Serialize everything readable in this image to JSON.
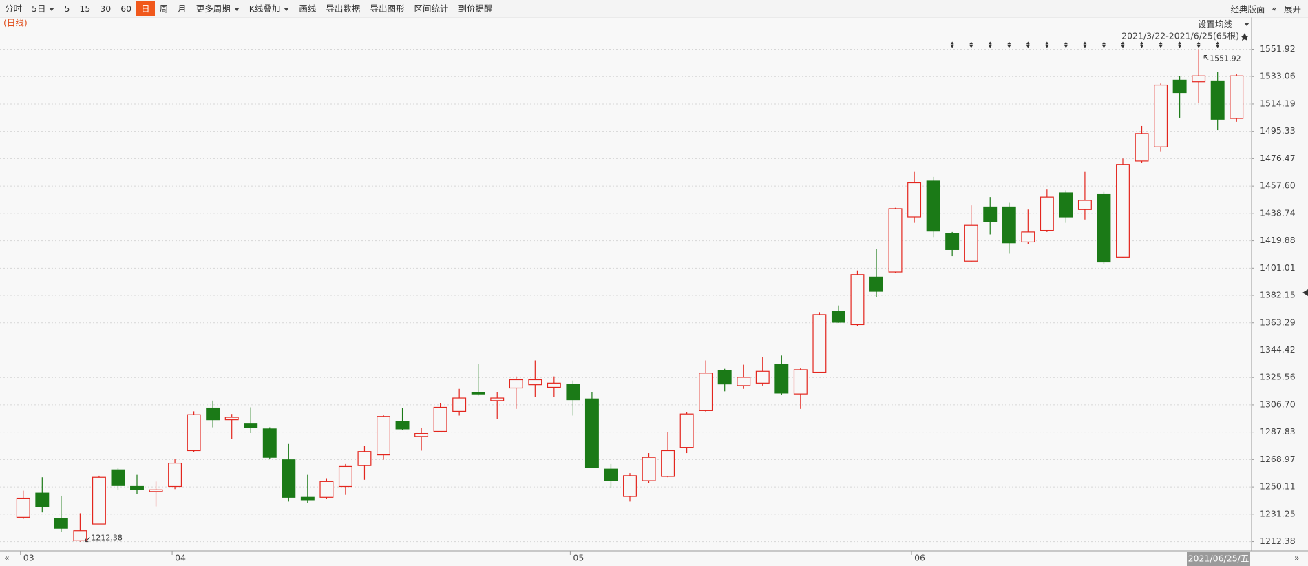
{
  "toolbar": {
    "items": [
      {
        "label": "分时"
      },
      {
        "label": "5日",
        "dropdown": true
      },
      {
        "label": "5"
      },
      {
        "label": "15"
      },
      {
        "label": "30"
      },
      {
        "label": "60"
      },
      {
        "label": "日",
        "active": true
      },
      {
        "label": "周"
      },
      {
        "label": "月"
      },
      {
        "label": "更多周期",
        "dropdown": true
      },
      {
        "label": "K线叠加",
        "dropdown": true
      },
      {
        "label": "画线"
      },
      {
        "label": "导出数据"
      },
      {
        "label": "导出图形"
      },
      {
        "label": "区间统计"
      },
      {
        "label": "到价提醒"
      }
    ],
    "right_items": [
      "经典版面",
      "«",
      "展开"
    ]
  },
  "chart_data": {
    "type": "candlestick",
    "period_label": "(日线)",
    "ma_setting": "设置均线",
    "range_label": "2021/3/22-2021/6/25(65根)",
    "cursor_date": "2021/06/25/五",
    "nav_prev": "«",
    "nav_next": "»",
    "up_color": "#e3261e",
    "down_color": "#1b7a17",
    "grid": true,
    "categories": [
      "03",
      null,
      null,
      null,
      null,
      null,
      null,
      null,
      "04",
      null,
      null,
      null,
      null,
      null,
      null,
      null,
      null,
      null,
      null,
      null,
      null,
      null,
      null,
      null,
      null,
      null,
      null,
      null,
      null,
      "05",
      null,
      null,
      null,
      null,
      null,
      null,
      null,
      null,
      null,
      null,
      null,
      null,
      null,
      null,
      null,
      null,
      null,
      "06",
      null,
      null,
      null,
      null,
      null,
      null,
      null,
      null,
      null,
      null,
      null,
      null,
      null,
      null,
      null,
      null,
      null
    ],
    "open": [
      1229.1,
      1245.8,
      1228.5,
      1212.96,
      1224.5,
      1261.9,
      1250.4,
      1246.9,
      1250.4,
      1275.1,
      1304.5,
      1296.4,
      1293.5,
      1290.1,
      1268.8,
      1242.9,
      1242.9,
      1250.4,
      1264.8,
      1272.2,
      1295.3,
      1284.9,
      1288.4,
      1302.2,
      1315.4,
      1309.6,
      1318.3,
      1320.6,
      1318.8,
      1321.1,
      1310.8,
      1262.4,
      1243.5,
      1254.4,
      1257.3,
      1277.4,
      1302.7,
      1330.4,
      1320.0,
      1321.7,
      1334.4,
      1314.2,
      1329.2,
      1371.2,
      1362.0,
      1394.8,
      1398.3,
      1436.3,
      1461.0,
      1424.7,
      1405.8,
      1443.2,
      1443.2,
      1419.0,
      1427.0,
      1452.9,
      1441.4,
      1451.7,
      1408.6,
      1474.8,
      1484.6,
      1530.6,
      1529.5,
      1530.1,
      1504.2
    ],
    "high": [
      1247.5,
      1256.7,
      1244.0,
      1231.9,
      1257.8,
      1263.0,
      1258.4,
      1253.8,
      1269.4,
      1302.2,
      1309.6,
      1300.4,
      1305.0,
      1291.2,
      1279.7,
      1258.4,
      1256.1,
      1265.9,
      1278.6,
      1299.9,
      1304.5,
      1290.6,
      1307.9,
      1317.7,
      1334.9,
      1315.4,
      1326.3,
      1337.3,
      1326.3,
      1323.4,
      1315.4,
      1265.9,
      1259.6,
      1273.4,
      1287.8,
      1301.6,
      1337.3,
      1331.5,
      1334.4,
      1339.6,
      1340.7,
      1332.1,
      1370.6,
      1375.2,
      1399.4,
      1414.4,
      1442.6,
      1467.3,
      1463.9,
      1425.9,
      1444.3,
      1450.0,
      1446.0,
      1441.4,
      1455.2,
      1454.6,
      1467.3,
      1453.5,
      1476.5,
      1499.0,
      1528.3,
      1533.5,
      1551.92,
      1536.4,
      1534.7
    ],
    "low": [
      1227.9,
      1232.5,
      1219.3,
      1212.38,
      1224.5,
      1248.1,
      1245.2,
      1236.6,
      1248.6,
      1274.0,
      1291.2,
      1283.2,
      1287.2,
      1269.4,
      1240.0,
      1238.9,
      1241.7,
      1244.6,
      1255.0,
      1268.8,
      1289.5,
      1275.1,
      1287.8,
      1299.3,
      1313.1,
      1297.0,
      1303.9,
      1312.0,
      1312.0,
      1299.3,
      1263.0,
      1249.2,
      1240.0,
      1252.7,
      1256.7,
      1273.4,
      1301.6,
      1316.0,
      1317.7,
      1320.0,
      1313.7,
      1303.9,
      1328.6,
      1363.2,
      1360.9,
      1381.0,
      1397.7,
      1432.2,
      1422.4,
      1409.2,
      1405.2,
      1424.2,
      1410.9,
      1417.3,
      1425.9,
      1432.2,
      1434.5,
      1404.0,
      1408.0,
      1473.7,
      1481.1,
      1504.7,
      1515.1,
      1496.1,
      1501.9
    ],
    "close": [
      1242.3,
      1236.6,
      1221.6,
      1219.9,
      1256.7,
      1251.0,
      1248.1,
      1248.1,
      1266.5,
      1299.9,
      1296.4,
      1298.1,
      1291.2,
      1270.5,
      1242.9,
      1241.2,
      1253.8,
      1264.2,
      1274.5,
      1298.7,
      1290.1,
      1286.9,
      1305.0,
      1311.4,
      1314.2,
      1311.4,
      1324.0,
      1324.0,
      1321.7,
      1310.2,
      1263.6,
      1254.4,
      1257.8,
      1270.5,
      1275.1,
      1300.4,
      1328.6,
      1321.1,
      1325.7,
      1329.8,
      1314.8,
      1330.9,
      1368.9,
      1363.7,
      1396.5,
      1385.0,
      1442.0,
      1459.8,
      1426.5,
      1413.8,
      1430.5,
      1432.8,
      1418.4,
      1425.9,
      1450.0,
      1436.3,
      1447.7,
      1405.2,
      1472.5,
      1493.8,
      1527.2,
      1522.0,
      1533.5,
      1503.6,
      1533.5
    ],
    "ylim": [
      1206,
      1574
    ],
    "yticks": [
      1212.38,
      1231.25,
      1250.11,
      1268.97,
      1287.83,
      {
        "value": 1306.7,
        "label": "1306.70"
      },
      1325.56,
      1344.42,
      1363.29,
      1382.15,
      1401.01,
      1419.88,
      1438.74,
      {
        "value": 1457.6,
        "label": "1457.60"
      },
      1476.47,
      1495.33,
      1514.19,
      1533.06,
      1551.92
    ]
  }
}
